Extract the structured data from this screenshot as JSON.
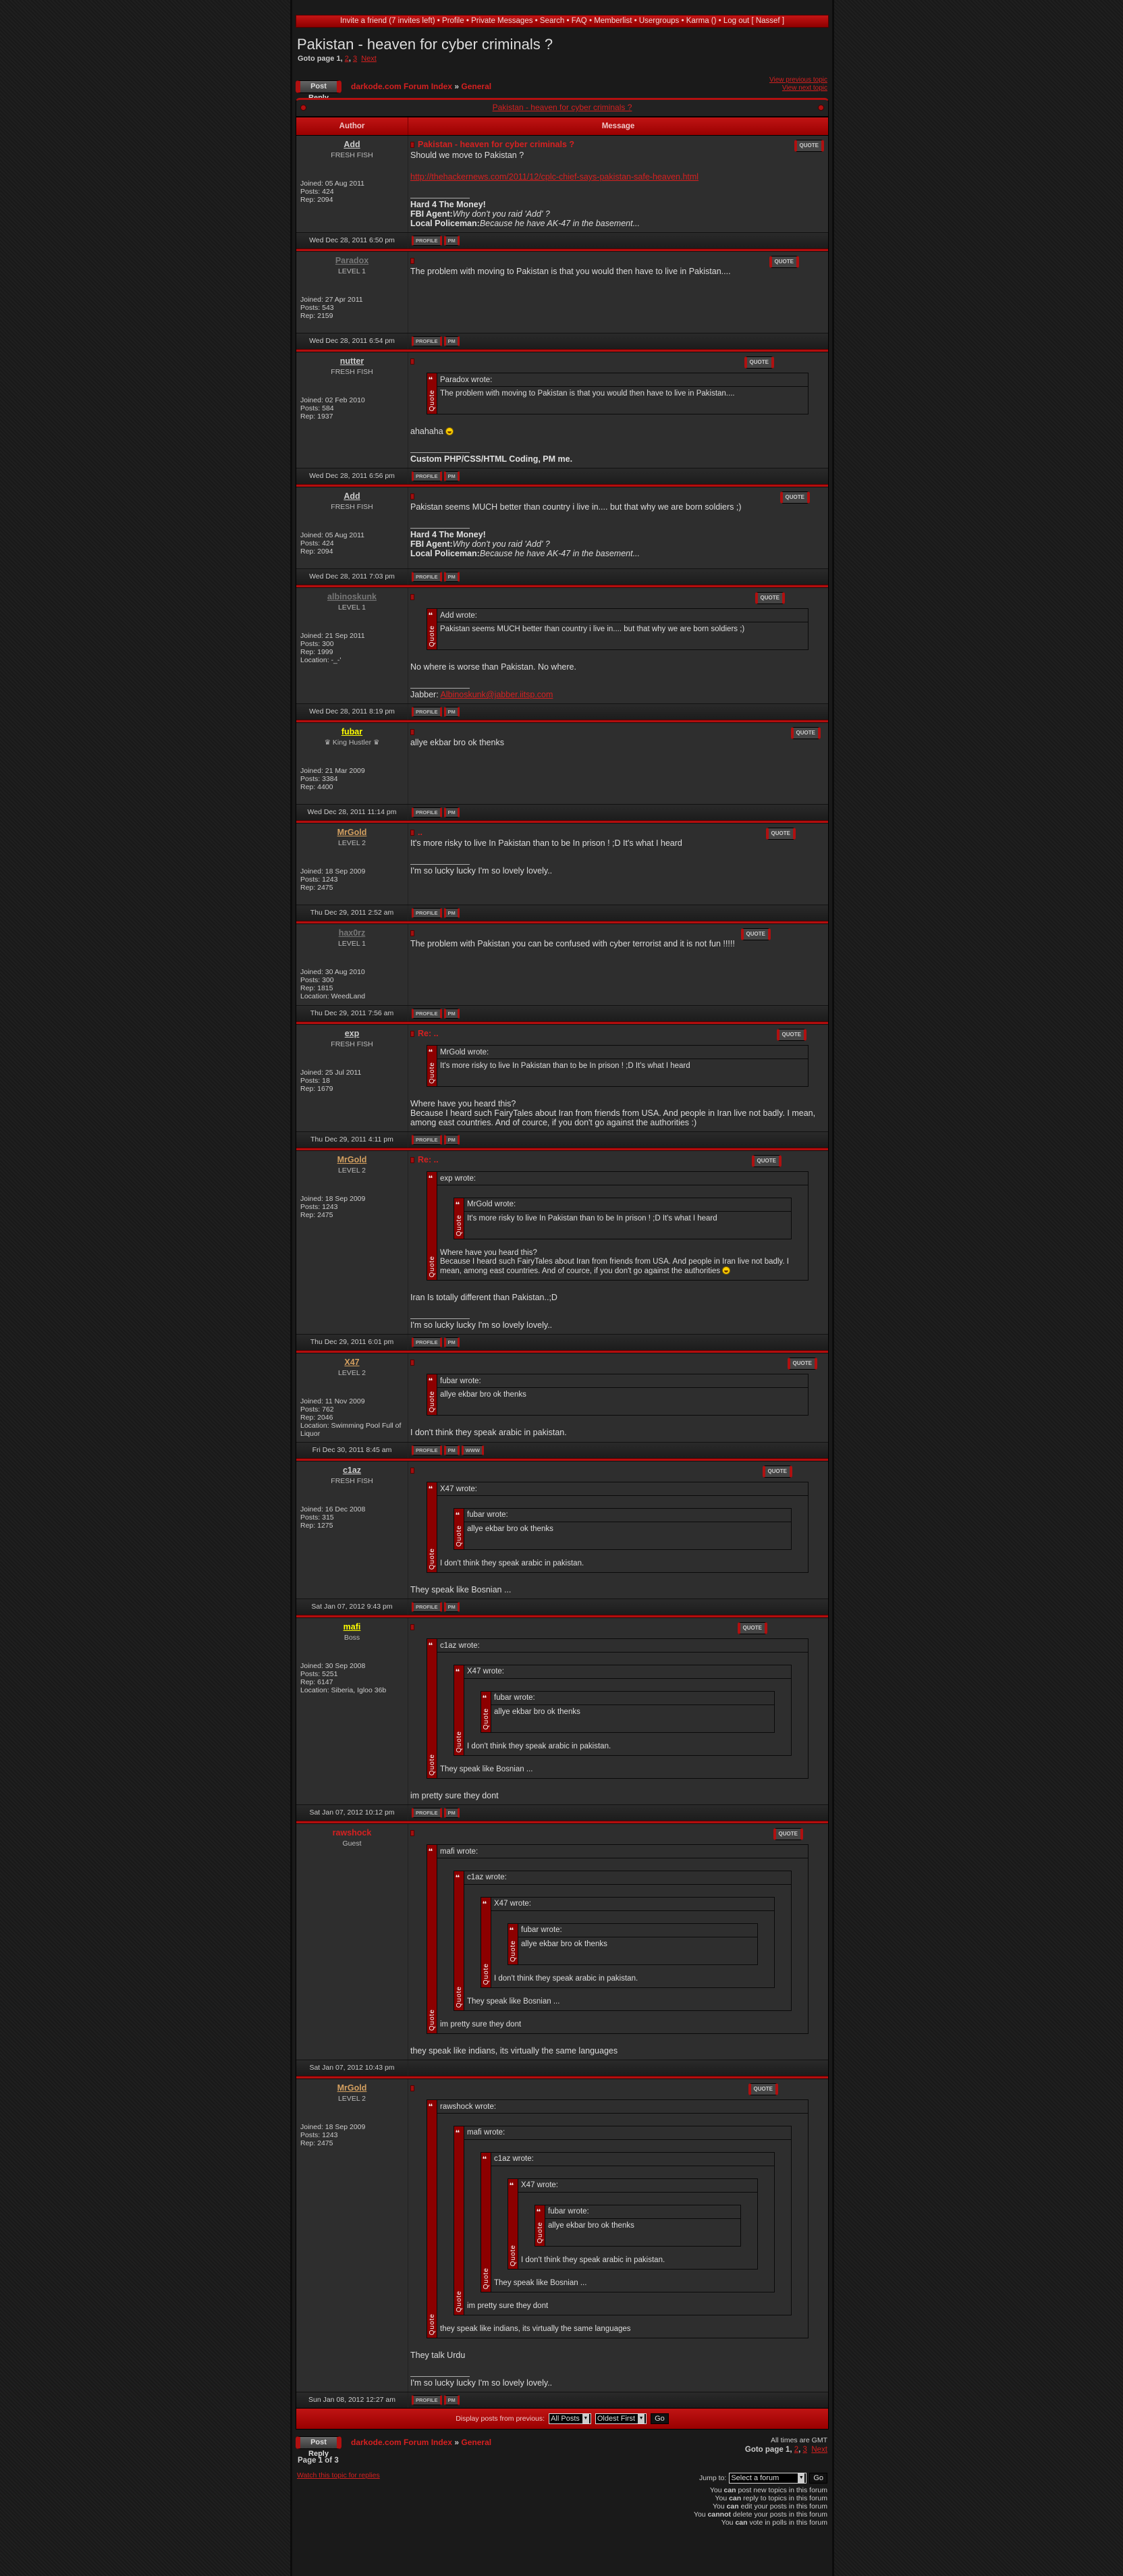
{
  "colors": {
    "accent": "#b30e0e",
    "link": "#d62020",
    "background": "#1a1a1a",
    "row": "#2e2e2e"
  },
  "topnav": {
    "items": [
      "Invite a friend (7 invites left)",
      "Profile",
      "Private Messages",
      "Search",
      "FAQ",
      "Memberlist",
      "Usergroups",
      "Karma ()",
      "Log out [ Nassef ]"
    ]
  },
  "title": "Pakistan - heaven for cyber criminals ?",
  "pagination": {
    "label": "Goto page",
    "current": "1",
    "pages": [
      "2",
      "3"
    ],
    "next": "Next"
  },
  "nav": {
    "post_reply": "Post Reply",
    "forum_index": "darkode.com Forum Index",
    "separator": "»",
    "forum": "General",
    "prev_topic": "View previous topic",
    "next_topic": "View next topic"
  },
  "topic_bar": "Pakistan - heaven for cyber criminals ?",
  "table_header": {
    "author": "Author",
    "message": "Message"
  },
  "buttons": {
    "quote": "QUOTE",
    "profile": "PROFILE",
    "pm": "PM",
    "www": "WWW"
  },
  "labels": {
    "joined": "Joined:",
    "posts": "Posts:",
    "rep": "Rep:",
    "location": "Location:",
    "quote_side": "Quote",
    "wrote": "wrote:"
  },
  "posts": [
    {
      "author": "Add",
      "author_color": "#cccccc",
      "rank": "FRESH FISH",
      "joined": "05 Aug 2011",
      "posts": "424",
      "rep": "2094",
      "subject": "Pakistan - heaven for cyber criminals ?",
      "body": [
        {
          "type": "text",
          "text": "Should we move to Pakistan ?"
        },
        {
          "type": "link",
          "text": "http://thehackernews.com/2011/12/cplc-chief-says-pakistan-safe-heaven.html"
        }
      ],
      "sig": [
        [
          {
            "t": "Hard 4 The Money!",
            "s": "b"
          }
        ],
        [
          {
            "t": "FBI Agent:",
            "s": "b"
          },
          {
            "t": "Why don't you raid 'Add' ?",
            "s": "i"
          }
        ],
        [
          {
            "t": "Local Policeman:",
            "s": "b"
          },
          {
            "t": "Because he have AK-47 in the basement...",
            "s": "i"
          }
        ]
      ],
      "date": "Wed Dec 28, 2011 6:50 pm",
      "profile": true,
      "pm": true
    },
    {
      "author": "Paradox",
      "author_color": "#777777",
      "rank": "LEVEL 1",
      "joined": "27 Apr 2011",
      "posts": "543",
      "rep": "2159",
      "subject": "",
      "body": [
        {
          "type": "text",
          "text": "The problem with moving to Pakistan is that you would then have to live in Pakistan...."
        }
      ],
      "date": "Wed Dec 28, 2011 6:54 pm",
      "profile": true,
      "pm": true
    },
    {
      "author": "nutter",
      "author_color": "#cccccc",
      "rank": "FRESH FISH",
      "joined": "02 Feb 2010",
      "posts": "584",
      "rep": "1937",
      "subject": "",
      "body": [
        {
          "type": "quote",
          "author": "Paradox",
          "content": [
            {
              "type": "text",
              "text": "The problem with moving to Pakistan is that you would then have to live in Pakistan...."
            }
          ]
        },
        {
          "type": "text",
          "text": "ahahaha",
          "smiley": true
        }
      ],
      "sig": [
        [
          {
            "t": "Custom PHP/CSS/HTML Coding, PM me.",
            "s": "b"
          }
        ]
      ],
      "date": "Wed Dec 28, 2011 6:56 pm",
      "profile": true,
      "pm": true
    },
    {
      "author": "Add",
      "author_color": "#cccccc",
      "rank": "FRESH FISH",
      "joined": "05 Aug 2011",
      "posts": "424",
      "rep": "2094",
      "subject": "",
      "body": [
        {
          "type": "text",
          "text": "Pakistan seems MUCH better than country i live in.... but that why we are born soldiers ;)"
        }
      ],
      "sig": [
        [
          {
            "t": "Hard 4 The Money!",
            "s": "b"
          }
        ],
        [
          {
            "t": "FBI Agent:",
            "s": "b"
          },
          {
            "t": "Why don't you raid 'Add' ?",
            "s": "i"
          }
        ],
        [
          {
            "t": "Local Policeman:",
            "s": "b"
          },
          {
            "t": "Because he have AK-47 in the basement...",
            "s": "i"
          }
        ]
      ],
      "date": "Wed Dec 28, 2011 7:03 pm",
      "profile": true,
      "pm": true
    },
    {
      "author": "albinoskunk",
      "author_color": "#777777",
      "rank": "LEVEL 1",
      "joined": "21 Sep 2011",
      "posts": "300",
      "rep": "1999",
      "location": "-_-'",
      "subject": "",
      "body": [
        {
          "type": "quote",
          "author": "Add",
          "content": [
            {
              "type": "text",
              "text": "Pakistan seems MUCH better than country i live in.... but that why we are born soldiers ;)"
            }
          ]
        },
        {
          "type": "text",
          "text": "No where is worse than Pakistan. No where."
        }
      ],
      "sig": [
        [
          {
            "t": "Jabber: ",
            "s": ""
          },
          {
            "t": "Albinoskunk@jabber.iitsp.com",
            "s": "link"
          }
        ]
      ],
      "date": "Wed Dec 28, 2011 8:19 pm",
      "profile": true,
      "pm": true
    },
    {
      "author": "fubar",
      "author_color": "#ffff00",
      "rank": "♛ King Hustler ♛",
      "joined": "21 Mar 2009",
      "posts": "3384",
      "rep": "4400",
      "subject": "",
      "body": [
        {
          "type": "text",
          "text": "allye ekbar bro ok thenks"
        }
      ],
      "date": "Wed Dec 28, 2011 11:14 pm",
      "profile": true,
      "pm": true
    },
    {
      "author": "MrGold",
      "author_color": "#d4a060",
      "rank": "LEVEL 2",
      "joined": "18 Sep 2009",
      "posts": "1243",
      "rep": "2475",
      "subject": "..",
      "body": [
        {
          "type": "text",
          "text": "It's more risky to live In Pakistan than to be In prison ! ;D It's what I heard"
        }
      ],
      "sig": [
        [
          {
            "t": "I'm so lucky lucky I'm so lovely lovely..",
            "s": ""
          }
        ]
      ],
      "date": "Thu Dec 29, 2011 2:52 am",
      "profile": true,
      "pm": true
    },
    {
      "author": "hax0rz",
      "author_color": "#777777",
      "rank": "LEVEL 1",
      "joined": "30 Aug 2010",
      "posts": "300",
      "rep": "1815",
      "location": "WeedLand",
      "subject": "",
      "body": [
        {
          "type": "text",
          "text": "The problem with Pakistan you can be confused with cyber terrorist and it is not fun !!!!!"
        }
      ],
      "date": "Thu Dec 29, 2011 7:56 am",
      "profile": true,
      "pm": true
    },
    {
      "author": "exp",
      "author_color": "#cccccc",
      "rank": "FRESH FISH",
      "joined": "25 Jul 2011",
      "posts": "18",
      "rep": "1679",
      "subject": "Re: ..",
      "body": [
        {
          "type": "quote",
          "author": "MrGold",
          "content": [
            {
              "type": "text",
              "text": "It's more risky to live In Pakistan than to be In prison ! ;D It's what I heard"
            }
          ]
        },
        {
          "type": "text",
          "text": "Where have you heard this?\nBecause I heard such FairyTales about Iran from friends from USA. And people in Iran live not badly. I mean, among east countries. And of cource, if you don't go against the authorities :)"
        }
      ],
      "date": "Thu Dec 29, 2011 4:11 pm",
      "profile": true,
      "pm": true
    },
    {
      "author": "MrGold",
      "author_color": "#d4a060",
      "rank": "LEVEL 2",
      "joined": "18 Sep 2009",
      "posts": "1243",
      "rep": "2475",
      "subject": "Re: ..",
      "body": [
        {
          "type": "quote",
          "author": "exp",
          "content": [
            {
              "type": "quote",
              "author": "MrGold",
              "content": [
                {
                  "type": "text",
                  "text": "It's more risky to live In Pakistan than to be In prison ! ;D It's what I heard"
                }
              ]
            },
            {
              "type": "text",
              "text": "Where have you heard this?\nBecause I heard such FairyTales about Iran from friends from USA. And people in Iran live not badly. I mean, among east countries. And of cource, if you don't go against the authorities",
              "smiley": true
            }
          ]
        },
        {
          "type": "text",
          "text": "Iran Is totally different than Pakistan..;D"
        }
      ],
      "sig": [
        [
          {
            "t": "I'm so lucky lucky I'm so lovely lovely..",
            "s": ""
          }
        ]
      ],
      "date": "Thu Dec 29, 2011 6:01 pm",
      "profile": true,
      "pm": true
    },
    {
      "author": "X47",
      "author_color": "#d4a060",
      "rank": "LEVEL 2",
      "joined": "11 Nov 2009",
      "posts": "762",
      "rep": "2046",
      "location": "Swimming Pool Full of Liquor",
      "subject": "",
      "body": [
        {
          "type": "quote",
          "author": "fubar",
          "content": [
            {
              "type": "text",
              "text": "allye ekbar bro ok thenks"
            }
          ]
        },
        {
          "type": "text",
          "text": "I don't think they speak arabic in pakistan."
        }
      ],
      "date": "Fri Dec 30, 2011 8:45 am",
      "profile": true,
      "pm": true,
      "www": true
    },
    {
      "author": "c1az",
      "author_color": "#cccccc",
      "rank": "FRESH FISH",
      "joined": "16 Dec 2008",
      "posts": "315",
      "rep": "1275",
      "subject": "",
      "body": [
        {
          "type": "quote",
          "author": "X47",
          "content": [
            {
              "type": "quote",
              "author": "fubar",
              "content": [
                {
                  "type": "text",
                  "text": "allye ekbar bro ok thenks"
                }
              ]
            },
            {
              "type": "text",
              "text": "I don't think they speak arabic in pakistan."
            }
          ]
        },
        {
          "type": "text",
          "text": "They speak like Bosnian ..."
        }
      ],
      "date": "Sat Jan 07, 2012 9:43 pm",
      "profile": true,
      "pm": true
    },
    {
      "author": "mafi",
      "author_color": "#ffff00",
      "rank": "Boss",
      "joined": "30 Sep 2008",
      "posts": "5251",
      "rep": "6147",
      "location": "Siberia, Igloo 36b",
      "subject": "",
      "body": [
        {
          "type": "quote",
          "author": "c1az",
          "content": [
            {
              "type": "quote",
              "author": "X47",
              "content": [
                {
                  "type": "quote",
                  "author": "fubar",
                  "content": [
                    {
                      "type": "text",
                      "text": "allye ekbar bro ok thenks"
                    }
                  ]
                },
                {
                  "type": "text",
                  "text": "I don't think they speak arabic in pakistan."
                }
              ]
            },
            {
              "type": "text",
              "text": "They speak like Bosnian ..."
            }
          ]
        },
        {
          "type": "text",
          "text": "im pretty sure they dont"
        }
      ],
      "date": "Sat Jan 07, 2012 10:12 pm",
      "profile": true,
      "pm": true
    },
    {
      "author": "rawshock",
      "author_color": "#d62020",
      "guest": true,
      "rank": "Guest",
      "subject": "",
      "body": [
        {
          "type": "quote",
          "author": "mafi",
          "content": [
            {
              "type": "quote",
              "author": "c1az",
              "content": [
                {
                  "type": "quote",
                  "author": "X47",
                  "content": [
                    {
                      "type": "quote",
                      "author": "fubar",
                      "content": [
                        {
                          "type": "text",
                          "text": "allye ekbar bro ok thenks"
                        }
                      ]
                    },
                    {
                      "type": "text",
                      "text": "I don't think they speak arabic in pakistan."
                    }
                  ]
                },
                {
                  "type": "text",
                  "text": "They speak like Bosnian ..."
                }
              ]
            },
            {
              "type": "text",
              "text": "im pretty sure they dont"
            }
          ]
        },
        {
          "type": "text",
          "text": "they speak like indians, its virtually the same languages"
        }
      ],
      "date": "Sat Jan 07, 2012 10:43 pm"
    },
    {
      "author": "MrGold",
      "author_color": "#d4a060",
      "rank": "LEVEL 2",
      "joined": "18 Sep 2009",
      "posts": "1243",
      "rep": "2475",
      "subject": "",
      "body": [
        {
          "type": "quote",
          "author": "rawshock",
          "content": [
            {
              "type": "quote",
              "author": "mafi",
              "content": [
                {
                  "type": "quote",
                  "author": "c1az",
                  "content": [
                    {
                      "type": "quote",
                      "author": "X47",
                      "content": [
                        {
                          "type": "quote",
                          "author": "fubar",
                          "content": [
                            {
                              "type": "text",
                              "text": "allye ekbar bro ok thenks"
                            }
                          ]
                        },
                        {
                          "type": "text",
                          "text": "I don't think they speak arabic in pakistan."
                        }
                      ]
                    },
                    {
                      "type": "text",
                      "text": "They speak like Bosnian ..."
                    }
                  ]
                },
                {
                  "type": "text",
                  "text": "im pretty sure they dont"
                }
              ]
            },
            {
              "type": "text",
              "text": "they speak like indians, its virtually the same languages"
            }
          ]
        },
        {
          "type": "text",
          "text": "They talk Urdu"
        }
      ],
      "sig": [
        [
          {
            "t": "I'm so lucky lucky I'm so lovely lovely..",
            "s": ""
          }
        ]
      ],
      "date": "Sun Jan 08, 2012 12:27 am",
      "profile": true,
      "pm": true
    }
  ],
  "display_bar": {
    "label": "Display posts from previous:",
    "posts_select": "All Posts",
    "order_select": "Oldest First",
    "go": "Go"
  },
  "footer": {
    "timezone": "All times are GMT",
    "page_of": "Page 1 of 3",
    "watch": "Watch this topic for replies",
    "jump_label": "Jump to:",
    "jump_select": "Select a forum",
    "jump_go": "Go",
    "permissions": [
      {
        "pre": "You ",
        "b": "can",
        "post": " post new topics in this forum"
      },
      {
        "pre": "You ",
        "b": "can",
        "post": " reply to topics in this forum"
      },
      {
        "pre": "You ",
        "b": "can",
        "post": " edit your posts in this forum"
      },
      {
        "pre": "You ",
        "b": "cannot",
        "post": " delete your posts in this forum"
      },
      {
        "pre": "You ",
        "b": "can",
        "post": " vote in polls in this forum"
      }
    ]
  }
}
